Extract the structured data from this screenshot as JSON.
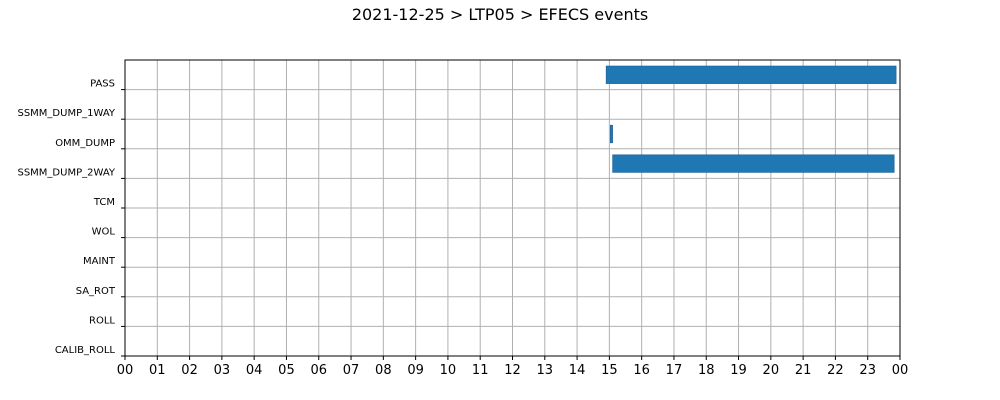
{
  "chart_data": {
    "type": "bar",
    "orientation": "horizontal",
    "title": "2021-12-25 > LTP05 > EFECS events",
    "xlabel": "",
    "ylabel": "",
    "x_range_hours": [
      0,
      24
    ],
    "x_tick_labels": [
      "00",
      "01",
      "02",
      "03",
      "04",
      "05",
      "06",
      "07",
      "08",
      "09",
      "10",
      "11",
      "12",
      "13",
      "14",
      "15",
      "16",
      "17",
      "18",
      "19",
      "20",
      "21",
      "22",
      "23",
      "00"
    ],
    "categories": [
      "PASS",
      "SSMM_DUMP_1WAY",
      "OMM_DUMP",
      "SSMM_DUMP_2WAY",
      "TCM",
      "WOL",
      "MAINT",
      "SA_ROT",
      "ROLL",
      "CALIB_ROLL"
    ],
    "grid": true,
    "bar_color": "#1f77b4",
    "events": [
      {
        "category": "PASS",
        "start_hour": 14.9,
        "end_hour": 23.88
      },
      {
        "category": "OMM_DUMP",
        "start_hour": 15.03,
        "end_hour": 15.1
      },
      {
        "category": "SSMM_DUMP_2WAY",
        "start_hour": 15.1,
        "end_hour": 23.82
      }
    ]
  }
}
